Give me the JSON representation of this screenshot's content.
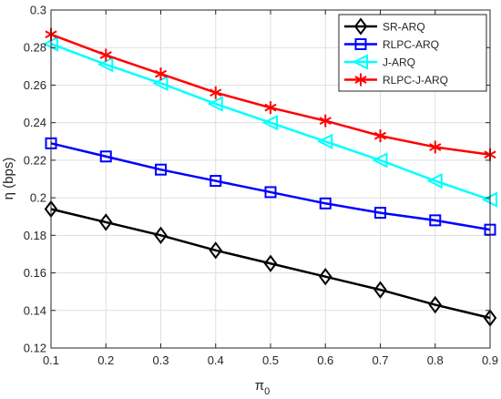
{
  "chart_data": {
    "type": "line",
    "title": "",
    "xlabel": "π",
    "xlabel_subscript": "0",
    "ylabel": "η (bps)",
    "xlim": [
      0.1,
      0.9
    ],
    "ylim": [
      0.12,
      0.3
    ],
    "x": [
      0.1,
      0.2,
      0.3,
      0.4,
      0.5,
      0.6,
      0.7,
      0.8,
      0.9
    ],
    "x_tick_labels": [
      "0.1",
      "0.2",
      "0.3",
      "0.4",
      "0.5",
      "0.6",
      "0.7",
      "0.8",
      "0.9"
    ],
    "y_ticks": [
      0.12,
      0.14,
      0.16,
      0.18,
      0.2,
      0.22,
      0.24,
      0.26,
      0.28,
      0.3
    ],
    "y_tick_labels": [
      "0.12",
      "0.14",
      "0.16",
      "0.18",
      "0.2",
      "0.22",
      "0.24",
      "0.26",
      "0.28",
      "0.3"
    ],
    "grid": true,
    "legend_position": "top-right",
    "series": [
      {
        "name": "SR-ARQ",
        "color": "#000000",
        "marker": "diamond",
        "values": [
          0.194,
          0.187,
          0.18,
          0.172,
          0.165,
          0.158,
          0.151,
          0.143,
          0.136
        ]
      },
      {
        "name": "RLPC-ARQ",
        "color": "#0000ff",
        "marker": "square",
        "values": [
          0.229,
          0.222,
          0.215,
          0.209,
          0.203,
          0.197,
          0.192,
          0.188,
          0.183
        ]
      },
      {
        "name": "J-ARQ",
        "color": "#00ffff",
        "marker": "triangle-left",
        "values": [
          0.282,
          0.271,
          0.261,
          0.25,
          0.24,
          0.23,
          0.22,
          0.209,
          0.199
        ]
      },
      {
        "name": "RLPC-J-ARQ",
        "color": "#ff0000",
        "marker": "asterisk",
        "values": [
          0.287,
          0.276,
          0.266,
          0.256,
          0.248,
          0.241,
          0.233,
          0.227,
          0.223
        ]
      }
    ]
  }
}
